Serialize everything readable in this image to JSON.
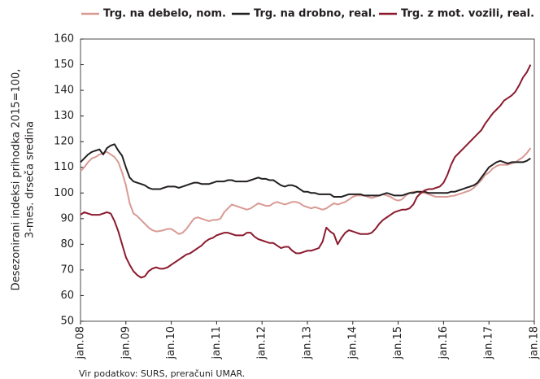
{
  "chart_data": {
    "type": "line",
    "ylabel": [
      "Desezonirani indeksi prihodka 2015=100,",
      "3-mes. drseča sredina"
    ],
    "source": "Vir podatkov: SURS, preračuni UMAR.",
    "categories": [
      "jan.08",
      null,
      null,
      null,
      null,
      null,
      null,
      null,
      null,
      null,
      null,
      null,
      "jan.09",
      null,
      null,
      null,
      null,
      null,
      null,
      null,
      null,
      null,
      null,
      null,
      "jan.10",
      null,
      null,
      null,
      null,
      null,
      null,
      null,
      null,
      null,
      null,
      null,
      "jan.11",
      null,
      null,
      null,
      null,
      null,
      null,
      null,
      null,
      null,
      null,
      null,
      "jan.12",
      null,
      null,
      null,
      null,
      null,
      null,
      null,
      null,
      null,
      null,
      null,
      "jan.13",
      null,
      null,
      null,
      null,
      null,
      null,
      null,
      null,
      null,
      null,
      null,
      "jan.14",
      null,
      null,
      null,
      null,
      null,
      null,
      null,
      null,
      null,
      null,
      null,
      "jan.15",
      null,
      null,
      null,
      null,
      null,
      null,
      null,
      null,
      null,
      null,
      null,
      "jan.16",
      null,
      null,
      null,
      null,
      null,
      null,
      null,
      null,
      null,
      null,
      null,
      "jan.17",
      null,
      null,
      null,
      null,
      null,
      null,
      null,
      null,
      null,
      null,
      null,
      "jan.18"
    ],
    "series": [
      {
        "name": "Trg. na debelo, nom.",
        "color": "#d99a94",
        "values": [
          108.5,
          110,
          112,
          113.5,
          114,
          115,
          115.5,
          116,
          115,
          114,
          112,
          108,
          103,
          96,
          92,
          91,
          89.5,
          88,
          86.5,
          85.5,
          85,
          85.2,
          85.5,
          86,
          86,
          85,
          84,
          84.5,
          86,
          88,
          90,
          90.5,
          90,
          89.5,
          89,
          89.5,
          89.5,
          90,
          92.5,
          94,
          95.5,
          95,
          94.5,
          94,
          93.5,
          94,
          95,
          96,
          95.5,
          95,
          95,
          96,
          96.5,
          96,
          95.5,
          96,
          96.5,
          96.5,
          96,
          95,
          94.5,
          94,
          94.5,
          94,
          93.5,
          94,
          95,
          96,
          95.5,
          96,
          96.5,
          97.5,
          98.5,
          99,
          99,
          99,
          98.5,
          98,
          98.5,
          99,
          99.5,
          99,
          98.5,
          97.5,
          97,
          97.5,
          99,
          100,
          100.5,
          100.5,
          100,
          100,
          99.5,
          99,
          98.5,
          98.5,
          98.5,
          98.5,
          98.8,
          99,
          99.5,
          100,
          100.5,
          101,
          102,
          103.5,
          105,
          107,
          108,
          109.5,
          110.5,
          111,
          111,
          111,
          111.5,
          112,
          113,
          114,
          115.5,
          117.5,
          null
        ]
      },
      {
        "name": "Trg. na drobno, real.",
        "color": "#231f20",
        "values": [
          112,
          113.5,
          115,
          116,
          116.5,
          117,
          115,
          117.5,
          118.5,
          119,
          116.5,
          114.5,
          110,
          106,
          104.5,
          104,
          103.5,
          103,
          102,
          101.5,
          101.5,
          101.5,
          102,
          102.5,
          102.5,
          102.5,
          102,
          102.5,
          103,
          103.5,
          104,
          104,
          103.5,
          103.5,
          103.5,
          104,
          104.5,
          104.5,
          104.5,
          105,
          105,
          104.5,
          104.5,
          104.5,
          104.5,
          105,
          105.5,
          106,
          105.5,
          105.5,
          105,
          105,
          104,
          103,
          102.5,
          103,
          103,
          102.5,
          101.5,
          100.5,
          100.5,
          100,
          100,
          99.5,
          99.5,
          99.5,
          99.5,
          98.5,
          98.5,
          98.5,
          99,
          99.5,
          99.5,
          99.5,
          99.5,
          99,
          99,
          99,
          99,
          99,
          99.5,
          100,
          99.5,
          99,
          99,
          99,
          99.5,
          100,
          100,
          100.5,
          100.5,
          100.5,
          100,
          100,
          100,
          100,
          100,
          100,
          100.5,
          100.5,
          101,
          101.5,
          102,
          102.5,
          103,
          104,
          106,
          108,
          110,
          111,
          112,
          112.5,
          112,
          111.5,
          112,
          112,
          112,
          112,
          112.5,
          113.5,
          null
        ]
      },
      {
        "name": "Trg. z mot. vozili, real.",
        "color": "#8b1a2e",
        "values": [
          91.5,
          92.5,
          92,
          91.5,
          91.5,
          91.5,
          92,
          92.5,
          92,
          89,
          85,
          80,
          75,
          72,
          69.5,
          68,
          67,
          67.5,
          69.5,
          70.5,
          71,
          70.5,
          70.5,
          71,
          72,
          73,
          74,
          75,
          76,
          76.5,
          77.5,
          78.5,
          79.5,
          81,
          82,
          82.5,
          83.5,
          84,
          84.5,
          84.5,
          84,
          83.5,
          83.5,
          83.5,
          84.5,
          84.5,
          83,
          82,
          81.5,
          81,
          80.5,
          80.5,
          79.5,
          78.5,
          79,
          79,
          77.5,
          76.5,
          76.5,
          77,
          77.5,
          77.5,
          78,
          78.5,
          81,
          86.5,
          85,
          84,
          80,
          82.5,
          84.5,
          85.5,
          85,
          84.5,
          84,
          84,
          84,
          84.5,
          86,
          88,
          89.5,
          90.5,
          91.5,
          92.5,
          93,
          93.5,
          93.5,
          94,
          95.5,
          98.5,
          100,
          101,
          101.5,
          101.5,
          102,
          102.5,
          104,
          107,
          111,
          114,
          115.5,
          117,
          118.5,
          120,
          121.5,
          123,
          124.5,
          127,
          129,
          131,
          132.5,
          134,
          136,
          137,
          138,
          139.5,
          142,
          145,
          147,
          150,
          null
        ]
      }
    ],
    "ylim": [
      50,
      160
    ],
    "yticks": [
      50,
      60,
      70,
      80,
      90,
      100,
      110,
      120,
      130,
      140,
      150,
      160
    ],
    "grid": false
  }
}
